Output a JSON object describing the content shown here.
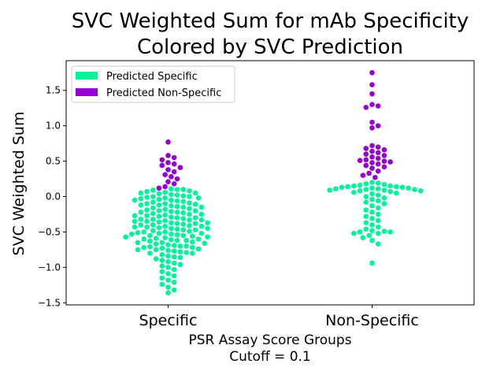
{
  "chart_data": {
    "type": "scatter",
    "title_lines": [
      "SVC Weighted Sum for mAb Specificity",
      "Colored by SVC Prediction"
    ],
    "xlabel_lines": [
      "PSR Assay Score Groups",
      "Cutoff = 0.1"
    ],
    "ylabel": "SVC Weighted Sum",
    "ylim": [
      -1.53,
      1.92
    ],
    "yticks": [
      -1.5,
      -1.0,
      -0.5,
      0.0,
      0.5,
      1.0,
      1.5
    ],
    "ytick_labels": [
      "−1.5",
      "−1.0",
      "−0.5",
      "0.0",
      "0.5",
      "1.0",
      "1.5"
    ],
    "categories": [
      "Specific",
      "Non-Specific"
    ],
    "grid": false,
    "legend_position": "top-left",
    "series": [
      {
        "name": "Predicted Specific",
        "color": "#00f59b"
      },
      {
        "name": "Predicted Non-Specific",
        "color": "#9400d3"
      }
    ],
    "groups": [
      {
        "category": "Specific",
        "points": [
          {
            "y": 0.77,
            "series": 1
          },
          {
            "y": 0.58,
            "series": 1
          },
          {
            "y": 0.55,
            "series": 1
          },
          {
            "y": 0.52,
            "series": 1
          },
          {
            "y": 0.48,
            "series": 1
          },
          {
            "y": 0.46,
            "series": 1
          },
          {
            "y": 0.44,
            "series": 1
          },
          {
            "y": 0.41,
            "series": 1
          },
          {
            "y": 0.38,
            "series": 1
          },
          {
            "y": 0.35,
            "series": 1
          },
          {
            "y": 0.31,
            "series": 1
          },
          {
            "y": 0.28,
            "series": 1
          },
          {
            "y": 0.25,
            "series": 1
          },
          {
            "y": 0.21,
            "series": 1
          },
          {
            "y": 0.18,
            "series": 1
          },
          {
            "y": 0.14,
            "series": 1
          },
          {
            "y": 0.12,
            "series": 1
          },
          {
            "y": 0.11,
            "series": 0
          },
          {
            "y": 0.1,
            "series": 0
          },
          {
            "y": 0.09,
            "series": 0
          },
          {
            "y": 0.08,
            "series": 0
          },
          {
            "y": 0.07,
            "series": 0
          },
          {
            "y": 0.06,
            "series": 0
          },
          {
            "y": 0.05,
            "series": 0
          },
          {
            "y": 0.04,
            "series": 0
          },
          {
            "y": 0.03,
            "series": 0
          },
          {
            "y": 0.02,
            "series": 0
          },
          {
            "y": 0.01,
            "series": 0
          },
          {
            "y": 0.0,
            "series": 0
          },
          {
            "y": -0.01,
            "series": 0
          },
          {
            "y": -0.02,
            "series": 0
          },
          {
            "y": -0.03,
            "series": 0
          },
          {
            "y": -0.04,
            "series": 0
          },
          {
            "y": -0.05,
            "series": 0
          },
          {
            "y": -0.06,
            "series": 0
          },
          {
            "y": -0.07,
            "series": 0
          },
          {
            "y": -0.08,
            "series": 0
          },
          {
            "y": -0.09,
            "series": 0
          },
          {
            "y": -0.1,
            "series": 0
          },
          {
            "y": -0.11,
            "series": 0
          },
          {
            "y": -0.12,
            "series": 0
          },
          {
            "y": -0.13,
            "series": 0
          },
          {
            "y": -0.14,
            "series": 0
          },
          {
            "y": -0.15,
            "series": 0
          },
          {
            "y": -0.16,
            "series": 0
          },
          {
            "y": -0.17,
            "series": 0
          },
          {
            "y": -0.18,
            "series": 0
          },
          {
            "y": -0.19,
            "series": 0
          },
          {
            "y": -0.2,
            "series": 0
          },
          {
            "y": -0.21,
            "series": 0
          },
          {
            "y": -0.22,
            "series": 0
          },
          {
            "y": -0.23,
            "series": 0
          },
          {
            "y": -0.24,
            "series": 0
          },
          {
            "y": -0.25,
            "series": 0
          },
          {
            "y": -0.26,
            "series": 0
          },
          {
            "y": -0.27,
            "series": 0
          },
          {
            "y": -0.28,
            "series": 0
          },
          {
            "y": -0.29,
            "series": 0
          },
          {
            "y": -0.3,
            "series": 0
          },
          {
            "y": -0.31,
            "series": 0
          },
          {
            "y": -0.32,
            "series": 0
          },
          {
            "y": -0.33,
            "series": 0
          },
          {
            "y": -0.34,
            "series": 0
          },
          {
            "y": -0.35,
            "series": 0
          },
          {
            "y": -0.36,
            "series": 0
          },
          {
            "y": -0.37,
            "series": 0
          },
          {
            "y": -0.38,
            "series": 0
          },
          {
            "y": -0.39,
            "series": 0
          },
          {
            "y": -0.4,
            "series": 0
          },
          {
            "y": -0.41,
            "series": 0
          },
          {
            "y": -0.42,
            "series": 0
          },
          {
            "y": -0.43,
            "series": 0
          },
          {
            "y": -0.44,
            "series": 0
          },
          {
            "y": -0.45,
            "series": 0
          },
          {
            "y": -0.46,
            "series": 0
          },
          {
            "y": -0.47,
            "series": 0
          },
          {
            "y": -0.48,
            "series": 0
          },
          {
            "y": -0.49,
            "series": 0
          },
          {
            "y": -0.5,
            "series": 0
          },
          {
            "y": -0.51,
            "series": 0
          },
          {
            "y": -0.52,
            "series": 0
          },
          {
            "y": -0.53,
            "series": 0
          },
          {
            "y": -0.54,
            "series": 0
          },
          {
            "y": -0.55,
            "series": 0
          },
          {
            "y": -0.56,
            "series": 0
          },
          {
            "y": -0.57,
            "series": 0
          },
          {
            "y": -0.58,
            "series": 0
          },
          {
            "y": -0.59,
            "series": 0
          },
          {
            "y": -0.6,
            "series": 0
          },
          {
            "y": -0.61,
            "series": 0
          },
          {
            "y": -0.62,
            "series": 0
          },
          {
            "y": -0.63,
            "series": 0
          },
          {
            "y": -0.64,
            "series": 0
          },
          {
            "y": -0.65,
            "series": 0
          },
          {
            "y": -0.66,
            "series": 0
          },
          {
            "y": -0.67,
            "series": 0
          },
          {
            "y": -0.68,
            "series": 0
          },
          {
            "y": -0.69,
            "series": 0
          },
          {
            "y": -0.7,
            "series": 0
          },
          {
            "y": -0.71,
            "series": 0
          },
          {
            "y": -0.72,
            "series": 0
          },
          {
            "y": -0.73,
            "series": 0
          },
          {
            "y": -0.74,
            "series": 0
          },
          {
            "y": -0.75,
            "series": 0
          },
          {
            "y": -0.76,
            "series": 0
          },
          {
            "y": -0.77,
            "series": 0
          },
          {
            "y": -0.78,
            "series": 0
          },
          {
            "y": -0.79,
            "series": 0
          },
          {
            "y": -0.8,
            "series": 0
          },
          {
            "y": -0.82,
            "series": 0
          },
          {
            "y": -0.84,
            "series": 0
          },
          {
            "y": -0.86,
            "series": 0
          },
          {
            "y": -0.88,
            "series": 0
          },
          {
            "y": -0.9,
            "series": 0
          },
          {
            "y": -0.92,
            "series": 0
          },
          {
            "y": -0.94,
            "series": 0
          },
          {
            "y": -0.96,
            "series": 0
          },
          {
            "y": -0.98,
            "series": 0
          },
          {
            "y": -1.0,
            "series": 0
          },
          {
            "y": -1.03,
            "series": 0
          },
          {
            "y": -1.06,
            "series": 0
          },
          {
            "y": -1.09,
            "series": 0
          },
          {
            "y": -1.12,
            "series": 0
          },
          {
            "y": -1.15,
            "series": 0
          },
          {
            "y": -1.18,
            "series": 0
          },
          {
            "y": -1.21,
            "series": 0
          },
          {
            "y": -1.24,
            "series": 0
          },
          {
            "y": -1.28,
            "series": 0
          },
          {
            "y": -1.32,
            "series": 0
          },
          {
            "y": -1.36,
            "series": 0
          },
          {
            "y": 0.1,
            "series": 0
          },
          {
            "y": 0.05,
            "series": 0
          },
          {
            "y": 0.0,
            "series": 0
          },
          {
            "y": -0.05,
            "series": 0
          },
          {
            "y": -0.1,
            "series": 0
          },
          {
            "y": -0.15,
            "series": 0
          },
          {
            "y": -0.2,
            "series": 0
          },
          {
            "y": -0.25,
            "series": 0
          },
          {
            "y": -0.3,
            "series": 0
          },
          {
            "y": -0.35,
            "series": 0
          },
          {
            "y": -0.4,
            "series": 0
          },
          {
            "y": -0.45,
            "series": 0
          },
          {
            "y": -0.5,
            "series": 0
          },
          {
            "y": -0.55,
            "series": 0
          },
          {
            "y": -0.6,
            "series": 0
          },
          {
            "y": -0.65,
            "series": 0
          },
          {
            "y": -0.7,
            "series": 0
          },
          {
            "y": -0.75,
            "series": 0
          },
          {
            "y": -0.8,
            "series": 0
          },
          {
            "y": -0.85,
            "series": 0
          },
          {
            "y": -0.02,
            "series": 0
          },
          {
            "y": -0.12,
            "series": 0
          },
          {
            "y": -0.22,
            "series": 0
          },
          {
            "y": -0.32,
            "series": 0
          },
          {
            "y": -0.42,
            "series": 0
          },
          {
            "y": -0.52,
            "series": 0
          },
          {
            "y": -0.62,
            "series": 0
          },
          {
            "y": -0.72,
            "series": 0
          },
          {
            "y": -0.27,
            "series": 0
          },
          {
            "y": -0.37,
            "series": 0
          },
          {
            "y": -0.47,
            "series": 0
          },
          {
            "y": -0.57,
            "series": 0
          },
          {
            "y": -0.33,
            "series": 0
          },
          {
            "y": -0.43,
            "series": 0
          },
          {
            "y": -0.53,
            "series": 0
          },
          {
            "y": -0.38,
            "series": 0
          }
        ]
      },
      {
        "category": "Non-Specific",
        "points": [
          {
            "y": 1.75,
            "series": 1
          },
          {
            "y": 1.58,
            "series": 1
          },
          {
            "y": 1.45,
            "series": 1
          },
          {
            "y": 1.3,
            "series": 1
          },
          {
            "y": 1.28,
            "series": 1
          },
          {
            "y": 1.26,
            "series": 1
          },
          {
            "y": 1.05,
            "series": 1
          },
          {
            "y": 1.0,
            "series": 1
          },
          {
            "y": 0.97,
            "series": 1
          },
          {
            "y": 0.72,
            "series": 1
          },
          {
            "y": 0.7,
            "series": 1
          },
          {
            "y": 0.68,
            "series": 1
          },
          {
            "y": 0.66,
            "series": 1
          },
          {
            "y": 0.64,
            "series": 1
          },
          {
            "y": 0.62,
            "series": 1
          },
          {
            "y": 0.6,
            "series": 1
          },
          {
            "y": 0.58,
            "series": 1
          },
          {
            "y": 0.56,
            "series": 1
          },
          {
            "y": 0.54,
            "series": 1
          },
          {
            "y": 0.52,
            "series": 1
          },
          {
            "y": 0.51,
            "series": 1
          },
          {
            "y": 0.5,
            "series": 1
          },
          {
            "y": 0.49,
            "series": 1
          },
          {
            "y": 0.48,
            "series": 1
          },
          {
            "y": 0.46,
            "series": 1
          },
          {
            "y": 0.44,
            "series": 1
          },
          {
            "y": 0.42,
            "series": 1
          },
          {
            "y": 0.4,
            "series": 1
          },
          {
            "y": 0.36,
            "series": 1
          },
          {
            "y": 0.33,
            "series": 1
          },
          {
            "y": 0.3,
            "series": 1
          },
          {
            "y": 0.27,
            "series": 1
          },
          {
            "y": 0.2,
            "series": 0
          },
          {
            "y": 0.19,
            "series": 0
          },
          {
            "y": 0.18,
            "series": 0
          },
          {
            "y": 0.17,
            "series": 0
          },
          {
            "y": 0.16,
            "series": 0
          },
          {
            "y": 0.15,
            "series": 0
          },
          {
            "y": 0.14,
            "series": 0
          },
          {
            "y": 0.13,
            "series": 0
          },
          {
            "y": 0.12,
            "series": 0
          },
          {
            "y": 0.11,
            "series": 0
          },
          {
            "y": 0.1,
            "series": 0
          },
          {
            "y": 0.09,
            "series": 0
          },
          {
            "y": 0.08,
            "series": 0
          },
          {
            "y": 0.07,
            "series": 0
          },
          {
            "y": 0.06,
            "series": 0
          },
          {
            "y": 0.05,
            "series": 0
          },
          {
            "y": 0.04,
            "series": 0
          },
          {
            "y": 0.02,
            "series": 0
          },
          {
            "y": 0.0,
            "series": 0
          },
          {
            "y": -0.02,
            "series": 0
          },
          {
            "y": -0.04,
            "series": 0
          },
          {
            "y": -0.06,
            "series": 0
          },
          {
            "y": -0.08,
            "series": 0
          },
          {
            "y": -0.1,
            "series": 0
          },
          {
            "y": -0.13,
            "series": 0
          },
          {
            "y": -0.16,
            "series": 0
          },
          {
            "y": -0.19,
            "series": 0
          },
          {
            "y": -0.22,
            "series": 0
          },
          {
            "y": -0.25,
            "series": 0
          },
          {
            "y": -0.28,
            "series": 0
          },
          {
            "y": -0.31,
            "series": 0
          },
          {
            "y": -0.34,
            "series": 0
          },
          {
            "y": -0.37,
            "series": 0
          },
          {
            "y": -0.4,
            "series": 0
          },
          {
            "y": -0.43,
            "series": 0
          },
          {
            "y": -0.46,
            "series": 0
          },
          {
            "y": -0.49,
            "series": 0
          },
          {
            "y": -0.5,
            "series": 0
          },
          {
            "y": -0.52,
            "series": 0
          },
          {
            "y": -0.55,
            "series": 0
          },
          {
            "y": -0.58,
            "series": 0
          },
          {
            "y": -0.62,
            "series": 0
          },
          {
            "y": -0.67,
            "series": 0
          },
          {
            "y": -0.94,
            "series": 0
          },
          {
            "y": 0.15,
            "series": 0
          },
          {
            "y": 0.12,
            "series": 0
          },
          {
            "y": 0.1,
            "series": 0
          },
          {
            "y": 0.08,
            "series": 0
          },
          {
            "y": 0.14,
            "series": 0
          },
          {
            "y": 0.11,
            "series": 0
          },
          {
            "y": 0.13,
            "series": 0
          },
          {
            "y": 0.09,
            "series": 0
          },
          {
            "y": -0.5,
            "series": 0
          },
          {
            "y": -0.52,
            "series": 0
          },
          {
            "y": -0.48,
            "series": 0
          }
        ]
      }
    ]
  }
}
